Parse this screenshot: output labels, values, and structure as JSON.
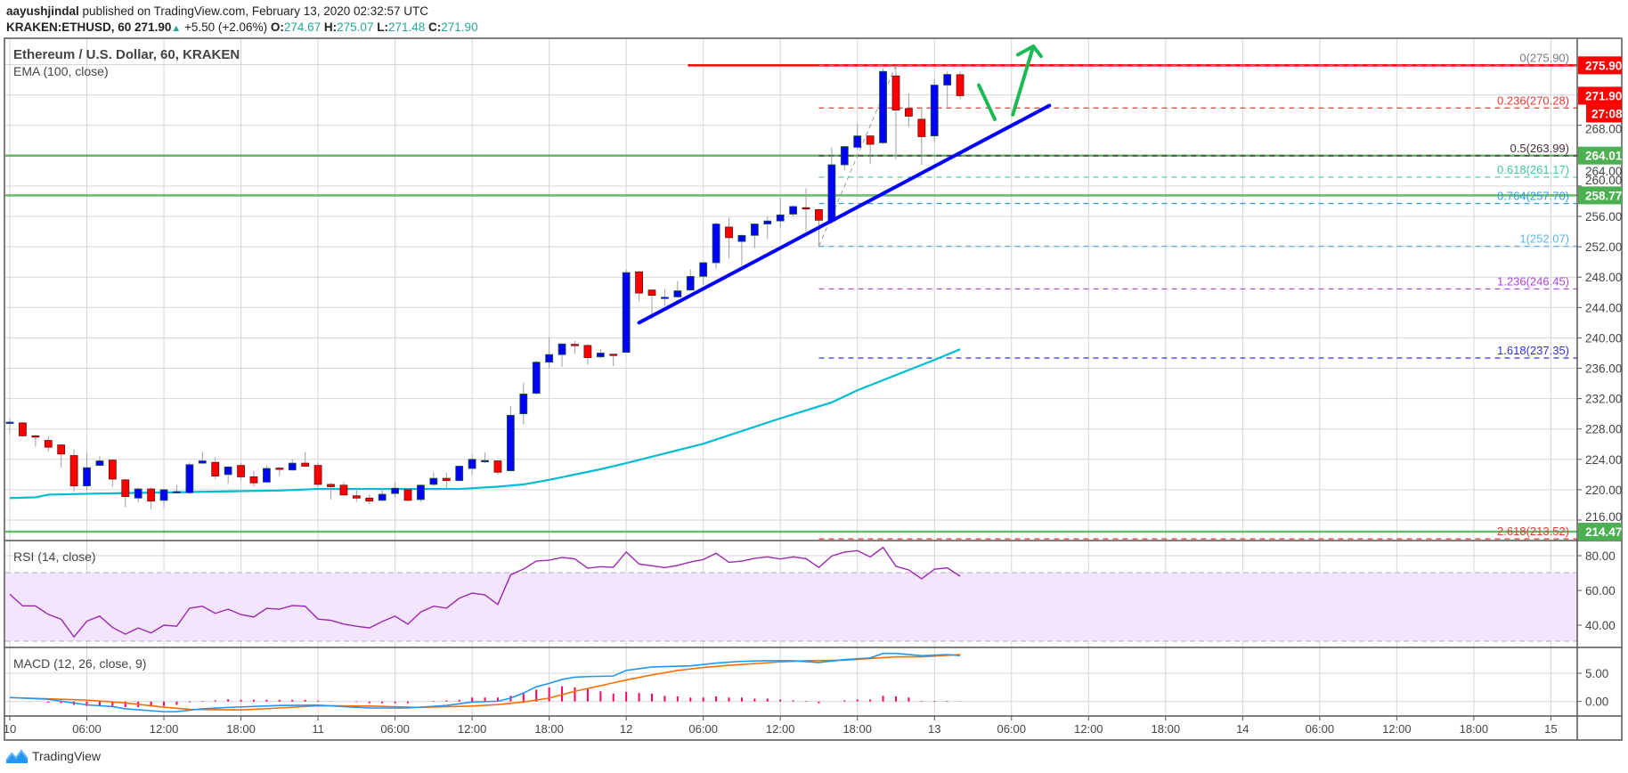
{
  "header": {
    "author": "aayushjindal",
    "published": "published on TradingView.com, February 13, 2020 02:32:57 UTC",
    "symbol": "KRAKEN:ETHUSD, 60",
    "last": "271.90",
    "change": "+5.50 (+2.06%)",
    "o_label": "O:",
    "o": "274.67",
    "h_label": "H:",
    "h": "275.07",
    "l_label": "L:",
    "l": "271.48",
    "c_label": "C:",
    "c": "271.90"
  },
  "footer": {
    "brand": "TradingView"
  },
  "colors": {
    "up": "#0000ff",
    "down": "#ff0000",
    "ema": "#00bcd4",
    "rsi": "#9c27b0",
    "macd": "#2196f3",
    "signal": "#ff6d00",
    "hist": "#ff0066",
    "support": "#4caf50",
    "resistance": "#ff0000",
    "trend": "#0000ff",
    "arrow": "#1db954"
  },
  "chart_data": [
    {
      "type": "candlestick",
      "title": "Ethereum / U.S. Dollar, 60, KRAKEN",
      "indicator": "EMA (100, close)",
      "ylim": [
        212,
        279
      ],
      "y_ticks": [
        216,
        220,
        224,
        228,
        232,
        236,
        240,
        244,
        248,
        252,
        256,
        260,
        264,
        268
      ],
      "x_labels": [
        "10",
        "06:00",
        "12:00",
        "18:00",
        "11",
        "06:00",
        "12:00",
        "18:00",
        "12",
        "06:00",
        "12:00",
        "18:00",
        "13",
        "06:00",
        "12:00",
        "18:00",
        "14",
        "06:00",
        "12:00",
        "18:00",
        "15"
      ],
      "hours_per_label": 6,
      "ohlc": [
        [
          228.9,
          229.4,
          227.4,
          228.9
        ],
        [
          228.8,
          228.9,
          227.0,
          227.1
        ],
        [
          227.1,
          227.2,
          225.7,
          227.0
        ],
        [
          226.5,
          227.0,
          225.0,
          225.6
        ],
        [
          225.9,
          226.0,
          222.9,
          224.7
        ],
        [
          224.5,
          225.3,
          219.8,
          220.5
        ],
        [
          220.5,
          224.9,
          219.9,
          222.9
        ],
        [
          223.2,
          224.4,
          223.1,
          223.8
        ],
        [
          223.9,
          224.0,
          220.4,
          221.4
        ],
        [
          221.3,
          221.4,
          217.7,
          219.1
        ],
        [
          218.9,
          220.3,
          218.3,
          220.1
        ],
        [
          220.1,
          220.3,
          217.4,
          218.5
        ],
        [
          218.6,
          220.1,
          217.7,
          220.0
        ],
        [
          219.7,
          220.6,
          219.5,
          219.75
        ],
        [
          219.6,
          223.6,
          219.4,
          223.3
        ],
        [
          223.5,
          225.0,
          223.4,
          223.8
        ],
        [
          223.6,
          224.3,
          221.4,
          221.8
        ],
        [
          222.0,
          223.1,
          220.8,
          223.0
        ],
        [
          223.2,
          223.5,
          221.2,
          221.7
        ],
        [
          221.7,
          222.5,
          220.4,
          220.9
        ],
        [
          221.0,
          223.2,
          220.9,
          222.8
        ],
        [
          222.85,
          223.0,
          221.8,
          222.8
        ],
        [
          222.6,
          224.0,
          222.5,
          223.5
        ],
        [
          223.5,
          225.0,
          223.0,
          223.1
        ],
        [
          223.2,
          223.6,
          220.3,
          220.7
        ],
        [
          220.7,
          220.9,
          218.7,
          220.4
        ],
        [
          220.6,
          221.0,
          219.2,
          219.3
        ],
        [
          219.2,
          220.3,
          218.4,
          218.9
        ],
        [
          218.9,
          219.4,
          218.1,
          218.5
        ],
        [
          218.6,
          220.3,
          218.5,
          219.4
        ],
        [
          219.5,
          221.0,
          219.0,
          220.2
        ],
        [
          220.0,
          220.2,
          218.5,
          218.6
        ],
        [
          218.7,
          220.7,
          218.4,
          220.6
        ],
        [
          220.7,
          222.3,
          220.5,
          221.5
        ],
        [
          221.5,
          222.2,
          220.2,
          221.2
        ],
        [
          221.2,
          223.2,
          221.1,
          223.1
        ],
        [
          222.8,
          224.6,
          222.0,
          224.0
        ],
        [
          223.8,
          224.9,
          223.5,
          223.85
        ],
        [
          223.8,
          223.9,
          222.0,
          222.3
        ],
        [
          222.5,
          231.0,
          222.4,
          229.8
        ],
        [
          230.0,
          234.1,
          228.6,
          232.6
        ],
        [
          232.7,
          237.0,
          232.5,
          236.8
        ],
        [
          236.8,
          240.1,
          236.0,
          237.8
        ],
        [
          237.8,
          239.3,
          236.2,
          239.2
        ],
        [
          239.15,
          239.6,
          237.9,
          239.1
        ],
        [
          239.0,
          239.2,
          236.5,
          237.4
        ],
        [
          237.5,
          238.5,
          237.3,
          238.0
        ],
        [
          237.85,
          237.9,
          236.3,
          237.8
        ],
        [
          238.1,
          249.0,
          238.0,
          248.6
        ],
        [
          248.7,
          248.8,
          244.8,
          245.9
        ],
        [
          246.3,
          246.4,
          242.5,
          245.6
        ],
        [
          245.3,
          246.4,
          244.2,
          245.35
        ],
        [
          245.4,
          247.5,
          245.3,
          246.2
        ],
        [
          246.3,
          249.0,
          246.2,
          248.1
        ],
        [
          248.1,
          250.0,
          247.0,
          249.9
        ],
        [
          249.9,
          255.2,
          249.1,
          255.0
        ],
        [
          254.6,
          255.8,
          250.5,
          253.2
        ],
        [
          252.7,
          253.6,
          249.5,
          253.5
        ],
        [
          253.5,
          255.1,
          251.8,
          255.0
        ],
        [
          255.0,
          256.0,
          253.0,
          255.4
        ],
        [
          255.4,
          258.5,
          254.5,
          256.2
        ],
        [
          256.3,
          257.5,
          256.0,
          257.3
        ],
        [
          257.15,
          259.7,
          254.0,
          257.1
        ],
        [
          256.9,
          257.0,
          252.07,
          255.5
        ],
        [
          255.4,
          265.1,
          255.0,
          262.8
        ],
        [
          262.8,
          265.3,
          262.1,
          265.2
        ],
        [
          265.1,
          268.2,
          264.8,
          266.6
        ],
        [
          266.6,
          266.7,
          262.9,
          265.5
        ],
        [
          265.7,
          275.5,
          265.5,
          275.1
        ],
        [
          274.5,
          275.9,
          263.5,
          270.0
        ],
        [
          270.2,
          272.2,
          267.8,
          269.2
        ],
        [
          268.8,
          270.4,
          262.8,
          266.5
        ],
        [
          266.6,
          274.1,
          265.8,
          273.3
        ],
        [
          273.3,
          275.1,
          270.4,
          274.7
        ],
        [
          274.67,
          275.07,
          271.48,
          271.9
        ]
      ],
      "ema": [
        [
          0,
          218.9
        ],
        [
          2,
          219.0
        ],
        [
          3,
          219.35
        ],
        [
          7,
          219.5
        ],
        [
          13,
          219.67
        ],
        [
          21,
          219.9
        ],
        [
          24,
          220.1
        ],
        [
          35,
          220.1
        ],
        [
          38,
          220.4
        ],
        [
          40,
          220.7
        ],
        [
          42,
          221.3
        ],
        [
          46,
          222.7
        ],
        [
          48,
          223.5
        ],
        [
          54,
          226.05
        ],
        [
          60,
          229.4
        ],
        [
          64,
          231.5
        ],
        [
          66,
          233.1
        ],
        [
          72,
          237.1
        ],
        [
          74,
          238.5
        ]
      ],
      "fib_levels": [
        {
          "label": "0(275.90)",
          "value": 275.9,
          "color": "#787b86"
        },
        {
          "label": "0.236(270.28)",
          "value": 270.28,
          "color": "#e53935"
        },
        {
          "label": "0.5(263.99)",
          "value": 263.99,
          "color": "#4a2c3e"
        },
        {
          "label": "0.618(261.17)",
          "value": 261.17,
          "color": "#3cc9a0"
        },
        {
          "label": "0.764(257.70)",
          "value": 257.7,
          "color": "#2a9de0"
        },
        {
          "label": "1(252.07)",
          "value": 252.07,
          "color": "#5ab4e8"
        },
        {
          "label": "1.236(246.45)",
          "value": 246.45,
          "color": "#b045e0"
        },
        {
          "label": "1.618(237.35)",
          "value": 237.35,
          "color": "#3030d8"
        },
        {
          "label": "2.618(213.52)",
          "value": 213.52,
          "color": "#e53935"
        }
      ],
      "fib_anchor": {
        "from": [
          63,
          252.07
        ],
        "to": [
          69,
          275.9
        ]
      },
      "horizontal_lines": [
        {
          "value": 275.9,
          "color": "#ff0000",
          "start_index": 52.8
        },
        {
          "value": 264.01,
          "color": "#4caf50",
          "start_index": -1
        },
        {
          "value": 258.77,
          "color": "#4caf50",
          "start_index": -1
        },
        {
          "value": 214.47,
          "color": "#4caf50",
          "start_index": -1
        }
      ],
      "trendline": {
        "from": [
          49,
          242.0
        ],
        "to": [
          80.95,
          270.6
        ]
      },
      "arrows": [
        {
          "from": [
            75.45,
            273.3
          ],
          "to": [
            76.7,
            268.8
          ],
          "head": false
        },
        {
          "from": [
            78.1,
            269.4
          ],
          "to": [
            79.7,
            278.4
          ],
          "head": true,
          "wings": [
            [
              78.5,
              277.3
            ],
            [
              80.3,
              277.1
            ]
          ]
        }
      ],
      "axis_labels": [
        {
          "text": "275.90",
          "value": 275.9,
          "bg": "#ff0000"
        },
        {
          "text": "271.90",
          "value": 271.9,
          "bg": "#ff0000"
        },
        {
          "text": "27:08",
          "value": 269.6,
          "bg": "#ff0000"
        },
        {
          "text": "264.01",
          "value": 264.01,
          "bg": "#4caf50"
        },
        {
          "text": "258.77",
          "value": 258.77,
          "bg": "#4caf50"
        },
        {
          "text": "214.47",
          "value": 214.47,
          "bg": "#4caf50"
        }
      ]
    },
    {
      "type": "line",
      "title": "RSI (14, close)",
      "ylim": [
        0,
        100
      ],
      "y_ticks": [
        40,
        60,
        80
      ],
      "band": [
        30,
        70
      ],
      "values": [
        57.8,
        51.1,
        51.1,
        46.2,
        43.4,
        33.2,
        42.3,
        45.2,
        38.7,
        34.8,
        38.4,
        35.5,
        40,
        39.4,
        49.8,
        50.9,
        46.8,
        49.2,
        46.1,
        44.7,
        49.7,
        49.2,
        51.3,
        50.9,
        43.5,
        42.8,
        40.6,
        39.4,
        38.4,
        42.1,
        45.2,
        40.6,
        47.6,
        50.9,
        49.8,
        55.5,
        58.5,
        57.4,
        51.9,
        69,
        72.3,
        76.9,
        77.4,
        79,
        78.2,
        72.8,
        73.7,
        73.3,
        82.2,
        75.2,
        74.2,
        73.2,
        74.4,
        76.4,
        77.8,
        81.4,
        76.2,
        76.9,
        78.5,
        79.3,
        78.1,
        79.3,
        78.3,
        73.2,
        79.8,
        82.1,
        82.9,
        79.3,
        84.8,
        73.9,
        71.8,
        66.7,
        72.2,
        73.0,
        68.2
      ]
    },
    {
      "type": "line",
      "title": "MACD (12, 26, close, 9)",
      "y_ticks": [
        0,
        5
      ],
      "y_tick_labels": [
        "0.00",
        "5.00"
      ],
      "macd": [
        [
          0,
          0.7
        ],
        [
          3,
          0.4
        ],
        [
          6,
          -0.6
        ],
        [
          8,
          -0.9
        ],
        [
          9,
          -1.3
        ],
        [
          12,
          -1.8
        ],
        [
          13,
          -1.8
        ],
        [
          15,
          -1.3
        ],
        [
          17,
          -1.05
        ],
        [
          21,
          -0.7
        ],
        [
          24,
          -0.65
        ],
        [
          28,
          -1.15
        ],
        [
          31,
          -1.15
        ],
        [
          34,
          -0.7
        ],
        [
          36,
          -0.1
        ],
        [
          38,
          0.05
        ],
        [
          39,
          0.6
        ],
        [
          40,
          1.5
        ],
        [
          41,
          2.6
        ],
        [
          42,
          3.2
        ],
        [
          43,
          3.9
        ],
        [
          44,
          4.3
        ],
        [
          45,
          4.4
        ],
        [
          47,
          4.5
        ],
        [
          48,
          5.5
        ],
        [
          50,
          6.1
        ],
        [
          53,
          6.3
        ],
        [
          55,
          6.8
        ],
        [
          57,
          7.1
        ],
        [
          59,
          7.2
        ],
        [
          61,
          7.2
        ],
        [
          63,
          6.9
        ],
        [
          65,
          7.4
        ],
        [
          67,
          7.7
        ],
        [
          68,
          8.5
        ],
        [
          69,
          8.5
        ],
        [
          71,
          8.1
        ],
        [
          73,
          8.3
        ],
        [
          74,
          8.1
        ]
      ],
      "signal": [
        [
          0,
          0.7
        ],
        [
          4,
          0.4
        ],
        [
          6,
          0.25
        ],
        [
          9,
          -0.25
        ],
        [
          12,
          -1
        ],
        [
          14,
          -1.4
        ],
        [
          18,
          -1.5
        ],
        [
          21,
          -1.15
        ],
        [
          24,
          -0.75
        ],
        [
          28,
          -0.8
        ],
        [
          32,
          -1.05
        ],
        [
          36,
          -0.8
        ],
        [
          38,
          -0.55
        ],
        [
          40,
          -0.1
        ],
        [
          42,
          0.6
        ],
        [
          44,
          1.8
        ],
        [
          45,
          2.3
        ],
        [
          47,
          3.3
        ],
        [
          48,
          3.8
        ],
        [
          50,
          4.7
        ],
        [
          52,
          5.5
        ],
        [
          54,
          6.0
        ],
        [
          56,
          6.4
        ],
        [
          60,
          7.0
        ],
        [
          62,
          7.2
        ],
        [
          65,
          7.3
        ],
        [
          67,
          7.6
        ],
        [
          69,
          7.9
        ],
        [
          71,
          7.9
        ],
        [
          74,
          8.3
        ]
      ],
      "histogram": [
        0,
        0,
        0,
        -0.2,
        -0.3,
        -0.6,
        -0.8,
        -0.8,
        -0.8,
        -1.0,
        -1.0,
        -0.9,
        -0.8,
        -0.6,
        -0.15,
        0.1,
        0.2,
        0.4,
        0.3,
        0.3,
        0.3,
        0.3,
        0.3,
        0.3,
        0.15,
        0.05,
        0,
        -0.1,
        -0.3,
        -0.3,
        -0.3,
        -0.3,
        0,
        0.1,
        0.2,
        0.3,
        0.7,
        0.7,
        0.7,
        1.0,
        1.5,
        2.1,
        2.5,
        2.7,
        2.5,
        2.2,
        1.8,
        1.4,
        1.7,
        1.5,
        1.4,
        1.0,
        0.9,
        0.7,
        0.7,
        0.9,
        0.7,
        0.7,
        0.5,
        0.5,
        0.35,
        0.2,
        0.1,
        -0.3,
        0,
        0.2,
        0.35,
        0.35,
        1.0,
        0.9,
        0.7,
        0.1,
        0.1,
        0.1,
        0.05
      ]
    }
  ]
}
